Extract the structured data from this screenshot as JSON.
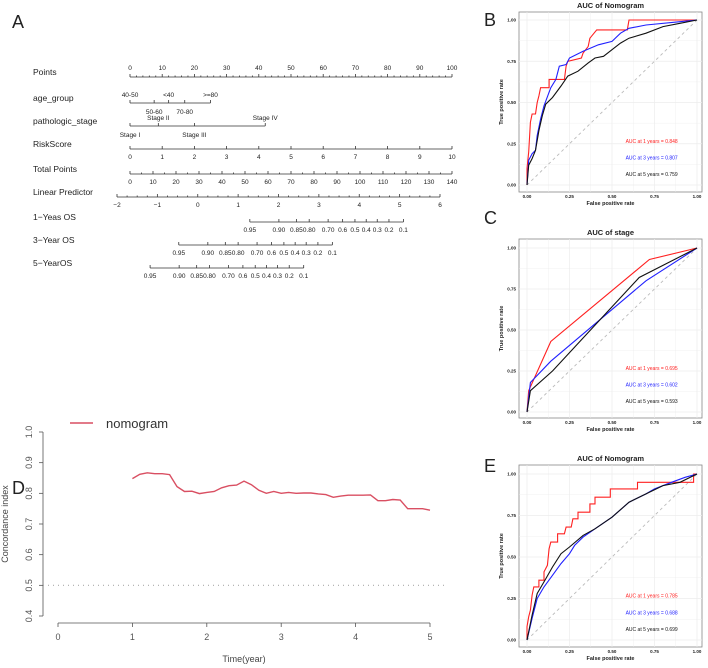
{
  "panel_letters": [
    "A",
    "B",
    "C",
    "D",
    "E"
  ],
  "chart_data": [
    {
      "type": "nomogram",
      "panel": "A",
      "rows": [
        {
          "label": "Points",
          "kind": "points",
          "ticks": [
            0,
            10,
            20,
            30,
            40,
            50,
            60,
            70,
            80,
            90,
            100
          ],
          "range": [
            0,
            100
          ]
        },
        {
          "label": "age_group",
          "kind": "factor",
          "levels": [
            {
              "name": "40-50",
              "points": 0,
              "side": "above"
            },
            {
              "name": "50-60",
              "points": 7.5,
              "side": "below"
            },
            {
              "name": "<40",
              "points": 12,
              "side": "above"
            },
            {
              "name": "70-80",
              "points": 17,
              "side": "below"
            },
            {
              "name": ">=80",
              "points": 25,
              "side": "above"
            }
          ]
        },
        {
          "label": "pathologic_stage",
          "kind": "factor",
          "levels": [
            {
              "name": "Stage I",
              "points": 0,
              "side": "below"
            },
            {
              "name": "Stage II",
              "points": 8.8,
              "side": "above"
            },
            {
              "name": "Stage III",
              "points": 20,
              "side": "below"
            },
            {
              "name": "Stage IV",
              "points": 42,
              "side": "above"
            }
          ]
        },
        {
          "label": "RiskScore",
          "kind": "continuous",
          "ticks": [
            0,
            1,
            2,
            3,
            4,
            5,
            6,
            7,
            8,
            9,
            10
          ],
          "range": [
            0,
            10
          ]
        },
        {
          "label": "Total Points",
          "kind": "total",
          "ticks": [
            0,
            10,
            20,
            30,
            40,
            50,
            60,
            70,
            80,
            90,
            100,
            110,
            120,
            130,
            140
          ],
          "range": [
            0,
            140
          ]
        },
        {
          "label": "Linear Predictor",
          "kind": "lp",
          "ticks": [
            "−2",
            "−1",
            "0",
            "1",
            "2",
            "3",
            "4",
            "5",
            "6"
          ],
          "range": [
            -2,
            6
          ]
        },
        {
          "label": "1−Yeas OS",
          "kind": "surv",
          "lp_offset": 4.26,
          "ticks": [
            "0.95",
            "0.90",
            "0.85",
            "0.80",
            "0.70",
            "0.6",
            "0.5",
            "0.4",
            "0.3",
            "0.2",
            "0.1"
          ]
        },
        {
          "label": "3−Year OS",
          "kind": "surv",
          "lp_offset": 2.5,
          "ticks": [
            "0.95",
            "0.90",
            "0.85",
            "0.80",
            "0.70",
            "0.6",
            "0.5",
            "0.4",
            "0.3",
            "0.2",
            "0.1"
          ]
        },
        {
          "label": "5−YearOS",
          "kind": "surv",
          "lp_offset": 1.79,
          "ticks": [
            "0.95",
            "0.90",
            "0.85",
            "0.80",
            "0.70",
            "0.6",
            "0.5",
            "0.4",
            "0.3",
            "0.2",
            "0.1"
          ]
        }
      ]
    },
    {
      "type": "line",
      "panel": "B",
      "title": "AUC of Nomogram",
      "xlabel": "False positive rate",
      "ylabel": "True positive rate",
      "xlim": [
        0,
        1
      ],
      "ylim": [
        0,
        1
      ],
      "ticks": [
        "0.00",
        "0.25",
        "0.50",
        "0.75",
        "1.00"
      ],
      "grid": true,
      "series": [
        {
          "name": "AUC at 1 years = 0.848",
          "color": "#ff2020",
          "points": [
            [
              0,
              0
            ],
            [
              0,
              0.1
            ],
            [
              0.01,
              0.2
            ],
            [
              0.02,
              0.38
            ],
            [
              0.03,
              0.43
            ],
            [
              0.05,
              0.43
            ],
            [
              0.06,
              0.5
            ],
            [
              0.07,
              0.54
            ],
            [
              0.08,
              0.59
            ],
            [
              0.13,
              0.59
            ],
            [
              0.13,
              0.64
            ],
            [
              0.22,
              0.64
            ],
            [
              0.23,
              0.72
            ],
            [
              0.24,
              0.75
            ],
            [
              0.32,
              0.77
            ],
            [
              0.33,
              0.8
            ],
            [
              0.36,
              0.84
            ],
            [
              0.37,
              0.89
            ],
            [
              0.41,
              0.94
            ],
            [
              0.59,
              0.94
            ],
            [
              0.6,
              1
            ],
            [
              1,
              1
            ]
          ]
        },
        {
          "name": "AUC at 3 years = 0.807",
          "color": "#2020ff",
          "points": [
            [
              0,
              0
            ],
            [
              0.01,
              0.15
            ],
            [
              0.03,
              0.19
            ],
            [
              0.05,
              0.21
            ],
            [
              0.06,
              0.3
            ],
            [
              0.08,
              0.4
            ],
            [
              0.1,
              0.48
            ],
            [
              0.14,
              0.59
            ],
            [
              0.17,
              0.64
            ],
            [
              0.19,
              0.72
            ],
            [
              0.23,
              0.73
            ],
            [
              0.25,
              0.77
            ],
            [
              0.33,
              0.81
            ],
            [
              0.42,
              0.85
            ],
            [
              0.5,
              0.87
            ],
            [
              0.55,
              0.92
            ],
            [
              0.6,
              0.95
            ],
            [
              0.7,
              0.97
            ],
            [
              0.9,
              0.99
            ],
            [
              1,
              1
            ]
          ]
        },
        {
          "name": "AUC at 5 years = 0.759",
          "color": "#111111",
          "points": [
            [
              0,
              0
            ],
            [
              0.01,
              0.12
            ],
            [
              0.03,
              0.16
            ],
            [
              0.05,
              0.21
            ],
            [
              0.07,
              0.33
            ],
            [
              0.09,
              0.42
            ],
            [
              0.11,
              0.49
            ],
            [
              0.15,
              0.53
            ],
            [
              0.2,
              0.6
            ],
            [
              0.24,
              0.66
            ],
            [
              0.3,
              0.69
            ],
            [
              0.36,
              0.74
            ],
            [
              0.4,
              0.77
            ],
            [
              0.45,
              0.78
            ],
            [
              0.5,
              0.82
            ],
            [
              0.55,
              0.86
            ],
            [
              0.6,
              0.89
            ],
            [
              0.7,
              0.92
            ],
            [
              0.8,
              0.96
            ],
            [
              0.9,
              0.98
            ],
            [
              1,
              1
            ]
          ]
        }
      ]
    },
    {
      "type": "line",
      "panel": "C",
      "title": "AUC of stage",
      "xlabel": "False positive rate",
      "ylabel": "True positive rate",
      "xlim": [
        0,
        1
      ],
      "ylim": [
        0,
        1
      ],
      "ticks": [
        "0.00",
        "0.25",
        "0.50",
        "0.75",
        "1.00"
      ],
      "grid": true,
      "series": [
        {
          "name": "AUC at 1 years = 0.695",
          "color": "#ff2020",
          "points": [
            [
              0,
              0
            ],
            [
              0.01,
              0.13
            ],
            [
              0.14,
              0.43
            ],
            [
              0.72,
              0.93
            ],
            [
              1,
              1
            ]
          ]
        },
        {
          "name": "AUC at 3 years = 0.602",
          "color": "#2020ff",
          "points": [
            [
              0,
              0
            ],
            [
              0.02,
              0.18
            ],
            [
              0.14,
              0.31
            ],
            [
              0.7,
              0.8
            ],
            [
              1,
              1
            ]
          ]
        },
        {
          "name": "AUC at 5 years = 0.593",
          "color": "#111111",
          "points": [
            [
              0,
              0
            ],
            [
              0.02,
              0.13
            ],
            [
              0.15,
              0.25
            ],
            [
              0.66,
              0.82
            ],
            [
              1,
              1
            ]
          ]
        }
      ]
    },
    {
      "type": "line",
      "panel": "D",
      "title": "",
      "xlabel": "Time(year)",
      "ylabel": "Concordance index",
      "xlim": [
        0,
        5
      ],
      "ylim": [
        0.4,
        1.0
      ],
      "xticks": [
        "0",
        "1",
        "2",
        "3",
        "4",
        "5"
      ],
      "yticks": [
        "0.4",
        "0.5",
        "0.6",
        "0.7",
        "0.8",
        "0.9",
        "1.0"
      ],
      "reference_line": 0.5,
      "legend": "top-left",
      "series": [
        {
          "name": "nomogram",
          "color": "#d94f62",
          "points": [
            [
              1,
              0.848
            ],
            [
              1.1,
              0.862
            ],
            [
              1.2,
              0.867
            ],
            [
              1.3,
              0.864
            ],
            [
              1.4,
              0.864
            ],
            [
              1.5,
              0.861
            ],
            [
              1.6,
              0.822
            ],
            [
              1.7,
              0.806
            ],
            [
              1.8,
              0.807
            ],
            [
              1.9,
              0.799
            ],
            [
              2,
              0.803
            ],
            [
              2.1,
              0.806
            ],
            [
              2.2,
              0.818
            ],
            [
              2.3,
              0.825
            ],
            [
              2.4,
              0.827
            ],
            [
              2.5,
              0.84
            ],
            [
              2.6,
              0.828
            ],
            [
              2.7,
              0.81
            ],
            [
              2.8,
              0.8
            ],
            [
              2.9,
              0.806
            ],
            [
              3,
              0.8
            ],
            [
              3.1,
              0.803
            ],
            [
              3.2,
              0.8
            ],
            [
              3.3,
              0.801
            ],
            [
              3.4,
              0.801
            ],
            [
              3.5,
              0.798
            ],
            [
              3.6,
              0.796
            ],
            [
              3.7,
              0.787
            ],
            [
              3.8,
              0.791
            ],
            [
              3.9,
              0.794
            ],
            [
              4,
              0.794
            ],
            [
              4.1,
              0.794
            ],
            [
              4.2,
              0.795
            ],
            [
              4.3,
              0.776
            ],
            [
              4.4,
              0.776
            ],
            [
              4.5,
              0.78
            ],
            [
              4.6,
              0.778
            ],
            [
              4.7,
              0.75
            ],
            [
              4.8,
              0.75
            ],
            [
              4.9,
              0.75
            ],
            [
              5,
              0.745
            ]
          ]
        }
      ]
    },
    {
      "type": "line",
      "panel": "E",
      "title": "AUC of Nomogram",
      "xlabel": "False positive rate",
      "ylabel": "True positive rate",
      "xlim": [
        0,
        1
      ],
      "ylim": [
        0,
        1
      ],
      "ticks": [
        "0.00",
        "0.25",
        "0.50",
        "0.75",
        "1.00"
      ],
      "grid": true,
      "series": [
        {
          "name": "AUC at 1 years = 0.785",
          "color": "#ff2020",
          "points": [
            [
              0,
              0
            ],
            [
              0,
              0.08
            ],
            [
              0.01,
              0.14
            ],
            [
              0.02,
              0.18
            ],
            [
              0.03,
              0.27
            ],
            [
              0.04,
              0.32
            ],
            [
              0.07,
              0.32
            ],
            [
              0.07,
              0.36
            ],
            [
              0.1,
              0.36
            ],
            [
              0.1,
              0.41
            ],
            [
              0.12,
              0.45
            ],
            [
              0.13,
              0.55
            ],
            [
              0.14,
              0.59
            ],
            [
              0.18,
              0.59
            ],
            [
              0.18,
              0.64
            ],
            [
              0.22,
              0.64
            ],
            [
              0.23,
              0.68
            ],
            [
              0.26,
              0.68
            ],
            [
              0.27,
              0.73
            ],
            [
              0.3,
              0.73
            ],
            [
              0.3,
              0.77
            ],
            [
              0.37,
              0.77
            ],
            [
              0.37,
              0.82
            ],
            [
              0.4,
              0.82
            ],
            [
              0.4,
              0.86
            ],
            [
              0.49,
              0.86
            ],
            [
              0.49,
              0.91
            ],
            [
              0.65,
              0.91
            ],
            [
              0.65,
              0.95
            ],
            [
              0.98,
              0.95
            ],
            [
              0.98,
              1
            ],
            [
              1,
              1
            ]
          ]
        },
        {
          "name": "AUC at 3 years = 0.688",
          "color": "#2020ff",
          "points": [
            [
              0,
              0
            ],
            [
              0.03,
              0.13
            ],
            [
              0.06,
              0.25
            ],
            [
              0.1,
              0.32
            ],
            [
              0.15,
              0.39
            ],
            [
              0.2,
              0.46
            ],
            [
              0.25,
              0.52
            ],
            [
              0.28,
              0.57
            ],
            [
              0.33,
              0.62
            ],
            [
              0.4,
              0.67
            ],
            [
              0.5,
              0.74
            ],
            [
              0.6,
              0.83
            ],
            [
              0.7,
              0.88
            ],
            [
              0.75,
              0.91
            ],
            [
              0.85,
              0.95
            ],
            [
              0.93,
              0.98
            ],
            [
              1,
              1
            ]
          ]
        },
        {
          "name": "AUC at 5 years = 0.699",
          "color": "#111111",
          "points": [
            [
              0,
              0
            ],
            [
              0.03,
              0.15
            ],
            [
              0.06,
              0.28
            ],
            [
              0.1,
              0.35
            ],
            [
              0.15,
              0.44
            ],
            [
              0.2,
              0.52
            ],
            [
              0.25,
              0.56
            ],
            [
              0.33,
              0.63
            ],
            [
              0.4,
              0.67
            ],
            [
              0.5,
              0.74
            ],
            [
              0.6,
              0.83
            ],
            [
              0.7,
              0.88
            ],
            [
              0.8,
              0.93
            ],
            [
              0.9,
              0.95
            ],
            [
              1,
              1
            ]
          ]
        }
      ]
    }
  ]
}
